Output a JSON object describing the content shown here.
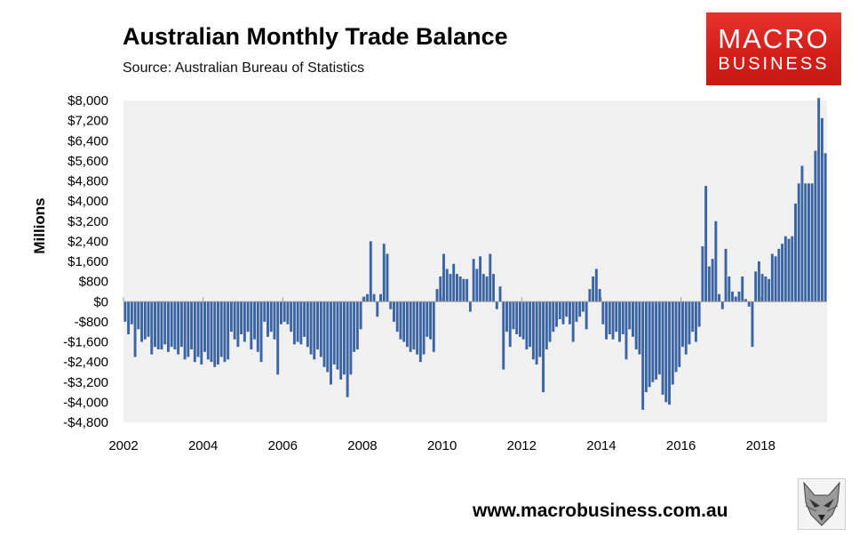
{
  "header": {
    "title": "Australian Monthly Trade Balance",
    "source": "Source: Australian Bureau of Statistics"
  },
  "logo": {
    "line1": "MACRO",
    "line2": "BUSINESS",
    "color": "#d9221d"
  },
  "footer": {
    "website": "www.macrobusiness.com.au",
    "mascot_icon": "fox-head-icon"
  },
  "chart_data": {
    "type": "bar",
    "title": "Australian Monthly Trade Balance",
    "ylabel": "Millions",
    "xlabel": "",
    "ylim": [
      -4800,
      8000
    ],
    "ytick_labels": [
      "$8,000",
      "$7,200",
      "$6,400",
      "$5,600",
      "$4,800",
      "$4,000",
      "$3,200",
      "$2,400",
      "$1,600",
      "$800",
      "$0",
      "-$800",
      "-$1,600",
      "-$2,400",
      "-$3,200",
      "-$4,000",
      "-$4,800"
    ],
    "ytick_values": [
      8000,
      7200,
      6400,
      5600,
      4800,
      4000,
      3200,
      2400,
      1600,
      800,
      0,
      -800,
      -1600,
      -2400,
      -3200,
      -4000,
      -4800
    ],
    "xtick_labels": [
      "2002",
      "2004",
      "2006",
      "2008",
      "2010",
      "2012",
      "2014",
      "2016",
      "2018"
    ],
    "x_start": "2002-01",
    "bar_color": "#3a64a3",
    "plot_background": "#f0f0f0",
    "grid": false,
    "series": [
      {
        "values": [
          -800,
          -1300,
          -900,
          -2200,
          -1100,
          -1600,
          -1500,
          -1400,
          -2100,
          -1800,
          -1900,
          -1900,
          -1700,
          -2000,
          -1800,
          -1900,
          -2100,
          -1800,
          -2300,
          -2200,
          -1900,
          -2400,
          -2200,
          -2500,
          -2000,
          -2300,
          -2400,
          -2600,
          -2500,
          -2200,
          -2400,
          -2300,
          -1200,
          -1500,
          -1800,
          -1300,
          -1600,
          -1200,
          -1900,
          -1500,
          -2000,
          -2400,
          -800,
          -1400,
          -1200,
          -1500,
          -2900,
          -900,
          -800,
          -900,
          -1200,
          -1700,
          -1600,
          -1700,
          -1400,
          -1800,
          -2100,
          -2300,
          -1900,
          -2200,
          -2600,
          -2800,
          -3300,
          -2500,
          -2700,
          -3100,
          -2900,
          -3800,
          -2900,
          -2000,
          -1900,
          -1100,
          200,
          300,
          2400,
          300,
          -600,
          300,
          2300,
          1900,
          -300,
          -800,
          -1200,
          -1500,
          -1600,
          -1800,
          -2000,
          -1900,
          -2100,
          -2400,
          -2100,
          -1400,
          -1500,
          -2000,
          500,
          1000,
          1900,
          1300,
          1100,
          1500,
          1100,
          1000,
          900,
          900,
          -400,
          1700,
          1300,
          1800,
          1100,
          1000,
          1900,
          1100,
          -300,
          600,
          -2700,
          -1200,
          -1800,
          -1100,
          -1300,
          -1400,
          -1500,
          -1900,
          -1800,
          -2300,
          -2500,
          -2200,
          -3600,
          -1900,
          -1600,
          -1200,
          -1000,
          -700,
          -900,
          -600,
          -900,
          -1600,
          -800,
          -600,
          -400,
          -1100,
          500,
          1000,
          1300,
          500,
          -900,
          -1500,
          -1300,
          -1500,
          -1200,
          -1600,
          -1300,
          -2300,
          -1100,
          -1400,
          -1900,
          -2100,
          -4300,
          -3600,
          -3400,
          -3200,
          -3100,
          -2900,
          -3700,
          -4000,
          -4100,
          -3300,
          -2800,
          -2600,
          -1800,
          -2100,
          -1700,
          -1200,
          -1600,
          -1000,
          2200,
          4600,
          1400,
          1700,
          3200,
          300,
          -300,
          2100,
          1000,
          400,
          200,
          400,
          1000,
          100,
          -200,
          -1800,
          1200,
          1600,
          1100,
          1000,
          900,
          1900,
          1800,
          2100,
          2300,
          2600,
          2500,
          2600,
          3900,
          4700,
          5400,
          4700,
          4700,
          4700,
          6000,
          8100,
          7300,
          5900
        ]
      }
    ]
  }
}
